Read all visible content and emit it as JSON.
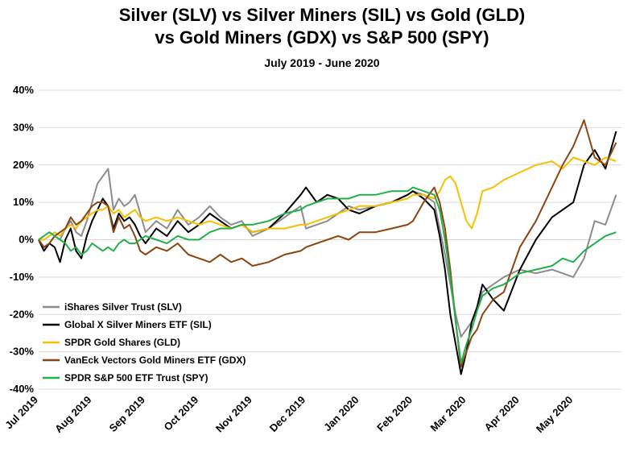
{
  "chart_data": {
    "type": "line",
    "title": "Silver (SLV) vs Silver Miners (SIL) vs Gold (GLD)",
    "title_line2": "vs Gold Miners (GDX) vs S&P 500 (SPY)",
    "subtitle": "July 2019 - June 2020",
    "xlabel": "",
    "ylabel": "",
    "ylim": [
      -40,
      40
    ],
    "yticks": [
      -40,
      -30,
      -20,
      -10,
      0,
      10,
      20,
      30,
      40
    ],
    "ytick_labels": [
      "-40%",
      "-30%",
      "-20%",
      "-10%",
      "0%",
      "10%",
      "20%",
      "30%",
      "40%"
    ],
    "x_tick_labels": [
      "Jul 2019",
      "Aug 2019",
      "Sep 2019",
      "Oct 2019",
      "Nov 2019",
      "Dec 2019",
      "Jan 2020",
      "Feb 2020",
      "Mar 2020",
      "Apr 2020",
      "May 2020"
    ],
    "xlim": [
      0,
      10.9
    ],
    "grid": "horizontal",
    "legend_position": "bottom-left",
    "series": [
      {
        "name": "iShares Silver Trust (SLV)",
        "color": "#8c8c8c",
        "x": [
          0,
          0.1,
          0.2,
          0.3,
          0.4,
          0.5,
          0.6,
          0.7,
          0.8,
          0.9,
          1.0,
          1.1,
          1.2,
          1.3,
          1.4,
          1.5,
          1.6,
          1.7,
          1.8,
          1.9,
          2.0,
          2.2,
          2.4,
          2.6,
          2.8,
          3.0,
          3.2,
          3.4,
          3.6,
          3.8,
          4.0,
          4.3,
          4.6,
          4.9,
          5.0,
          5.2,
          5.4,
          5.6,
          5.8,
          6.0,
          6.3,
          6.6,
          6.9,
          7.0,
          7.2,
          7.4,
          7.5,
          7.6,
          7.7,
          7.8,
          7.9,
          8.0,
          8.1,
          8.2,
          8.3,
          8.5,
          8.7,
          9.0,
          9.3,
          9.6,
          9.8,
          10.0,
          10.2,
          10.4,
          10.6,
          10.8
        ],
        "y": [
          0,
          -2,
          -1,
          1,
          0,
          3,
          5,
          2,
          1,
          5,
          10,
          15,
          17,
          19,
          8,
          11,
          9,
          10,
          12,
          7,
          2,
          5,
          3,
          8,
          4,
          6,
          9,
          6,
          4,
          5,
          1,
          3,
          6,
          9,
          3,
          4,
          5,
          7,
          9,
          8,
          9,
          10,
          12,
          13,
          12,
          10,
          3,
          -4,
          -12,
          -20,
          -26,
          -24,
          -22,
          -18,
          -14,
          -12,
          -10,
          -8,
          -9,
          -8,
          -9,
          -10,
          -5,
          5,
          4,
          12
        ]
      },
      {
        "name": "Global X Silver Miners ETF (SIL)",
        "color": "#000000",
        "x": [
          0,
          0.1,
          0.2,
          0.3,
          0.4,
          0.5,
          0.6,
          0.7,
          0.8,
          0.9,
          1.0,
          1.1,
          1.2,
          1.3,
          1.4,
          1.5,
          1.6,
          1.7,
          1.8,
          1.9,
          2.0,
          2.2,
          2.4,
          2.6,
          2.8,
          3.0,
          3.2,
          3.4,
          3.6,
          3.8,
          4.0,
          4.3,
          4.6,
          4.9,
          5.0,
          5.2,
          5.4,
          5.6,
          5.8,
          6.0,
          6.3,
          6.6,
          6.9,
          7.0,
          7.2,
          7.4,
          7.5,
          7.6,
          7.7,
          7.8,
          7.9,
          8.0,
          8.1,
          8.2,
          8.3,
          8.5,
          8.7,
          9.0,
          9.3,
          9.6,
          9.8,
          10.0,
          10.2,
          10.4,
          10.6,
          10.8
        ],
        "y": [
          0,
          -3,
          -1,
          -2,
          -6,
          0,
          3,
          -3,
          -5,
          1,
          5,
          8,
          11,
          9,
          3,
          7,
          5,
          6,
          4,
          1,
          -1,
          3,
          1,
          5,
          2,
          4,
          7,
          5,
          3,
          4,
          2,
          3,
          7,
          12,
          14,
          10,
          12,
          11,
          8,
          7,
          9,
          10,
          12,
          13,
          11,
          8,
          1,
          -8,
          -20,
          -28,
          -36,
          -30,
          -22,
          -18,
          -12,
          -16,
          -19,
          -8,
          0,
          6,
          8,
          10,
          20,
          24,
          19,
          29
        ]
      },
      {
        "name": "SPDR Gold Shares (GLD)",
        "color": "#f5c000",
        "x": [
          0,
          0.1,
          0.2,
          0.3,
          0.4,
          0.5,
          0.6,
          0.7,
          0.8,
          0.9,
          1.0,
          1.1,
          1.2,
          1.3,
          1.4,
          1.5,
          1.6,
          1.7,
          1.8,
          1.9,
          2.0,
          2.2,
          2.4,
          2.6,
          2.8,
          3.0,
          3.2,
          3.4,
          3.6,
          3.8,
          4.0,
          4.3,
          4.6,
          4.9,
          5.0,
          5.2,
          5.4,
          5.6,
          5.8,
          6.0,
          6.3,
          6.6,
          6.9,
          7.0,
          7.2,
          7.4,
          7.5,
          7.6,
          7.7,
          7.8,
          7.9,
          8.0,
          8.1,
          8.2,
          8.3,
          8.5,
          8.7,
          9.0,
          9.3,
          9.6,
          9.8,
          10.0,
          10.2,
          10.4,
          10.6,
          10.8
        ],
        "y": [
          0,
          0,
          1,
          2,
          1,
          3,
          4,
          3,
          5,
          6,
          7,
          8,
          8,
          9,
          7,
          8,
          6,
          7,
          8,
          6,
          5,
          6,
          5,
          6,
          5,
          4,
          5,
          4,
          3,
          4,
          2,
          3,
          3,
          4,
          4,
          5,
          6,
          7,
          8,
          9,
          9,
          10,
          11,
          12,
          12,
          11,
          13,
          16,
          17,
          15,
          10,
          5,
          3,
          7,
          13,
          14,
          16,
          18,
          20,
          21,
          19,
          22,
          21,
          20,
          22,
          21
        ]
      },
      {
        "name": "VanEck Vectors Gold Miners ETF (GDX)",
        "color": "#8b4513",
        "x": [
          0,
          0.1,
          0.2,
          0.3,
          0.4,
          0.5,
          0.6,
          0.7,
          0.8,
          0.9,
          1.0,
          1.1,
          1.2,
          1.3,
          1.4,
          1.5,
          1.6,
          1.7,
          1.8,
          1.9,
          2.0,
          2.2,
          2.4,
          2.6,
          2.8,
          3.0,
          3.2,
          3.4,
          3.6,
          3.8,
          4.0,
          4.3,
          4.6,
          4.9,
          5.0,
          5.2,
          5.4,
          5.6,
          5.8,
          6.0,
          6.3,
          6.6,
          6.9,
          7.0,
          7.2,
          7.4,
          7.5,
          7.6,
          7.7,
          7.8,
          7.9,
          8.0,
          8.1,
          8.2,
          8.3,
          8.5,
          8.7,
          9.0,
          9.3,
          9.6,
          9.8,
          10.0,
          10.2,
          10.4,
          10.6,
          10.8
        ],
        "y": [
          0,
          -2,
          -1,
          1,
          2,
          3,
          6,
          4,
          5,
          7,
          9,
          10,
          10,
          9,
          2,
          6,
          3,
          4,
          1,
          -3,
          -4,
          -2,
          -3,
          -1,
          -4,
          -5,
          -6,
          -4,
          -6,
          -5,
          -7,
          -6,
          -4,
          -3,
          -2,
          -1,
          0,
          1,
          0,
          2,
          2,
          3,
          4,
          5,
          10,
          14,
          10,
          3,
          -8,
          -22,
          -34,
          -30,
          -26,
          -24,
          -20,
          -16,
          -14,
          -2,
          5,
          14,
          20,
          25,
          32,
          22,
          20,
          26
        ]
      },
      {
        "name": "SPDR S&P 500 ETF Trust (SPY)",
        "color": "#22b04a",
        "x": [
          0,
          0.1,
          0.2,
          0.3,
          0.4,
          0.5,
          0.6,
          0.7,
          0.8,
          0.9,
          1.0,
          1.1,
          1.2,
          1.3,
          1.4,
          1.5,
          1.6,
          1.7,
          1.8,
          1.9,
          2.0,
          2.2,
          2.4,
          2.6,
          2.8,
          3.0,
          3.2,
          3.4,
          3.6,
          3.8,
          4.0,
          4.3,
          4.6,
          4.9,
          5.0,
          5.2,
          5.4,
          5.6,
          5.8,
          6.0,
          6.3,
          6.6,
          6.9,
          7.0,
          7.2,
          7.4,
          7.5,
          7.6,
          7.7,
          7.8,
          7.9,
          8.0,
          8.1,
          8.2,
          8.3,
          8.5,
          8.7,
          9.0,
          9.3,
          9.6,
          9.8,
          10.0,
          10.2,
          10.4,
          10.6,
          10.8
        ],
        "y": [
          0,
          1,
          2,
          1,
          0,
          -1,
          -3,
          -2,
          -4,
          -3,
          -1,
          -2,
          -3,
          -2,
          -3,
          -1,
          0,
          -1,
          -1,
          0,
          1,
          0,
          -1,
          1,
          0,
          0,
          2,
          3,
          3,
          4,
          4,
          5,
          7,
          8,
          9,
          10,
          11,
          11,
          11,
          12,
          12,
          13,
          13,
          14,
          13,
          12,
          8,
          0,
          -10,
          -22,
          -33,
          -28,
          -24,
          -19,
          -15,
          -13,
          -12,
          -9,
          -8,
          -7,
          -5,
          -6,
          -3,
          -1,
          1,
          2
        ]
      }
    ]
  }
}
